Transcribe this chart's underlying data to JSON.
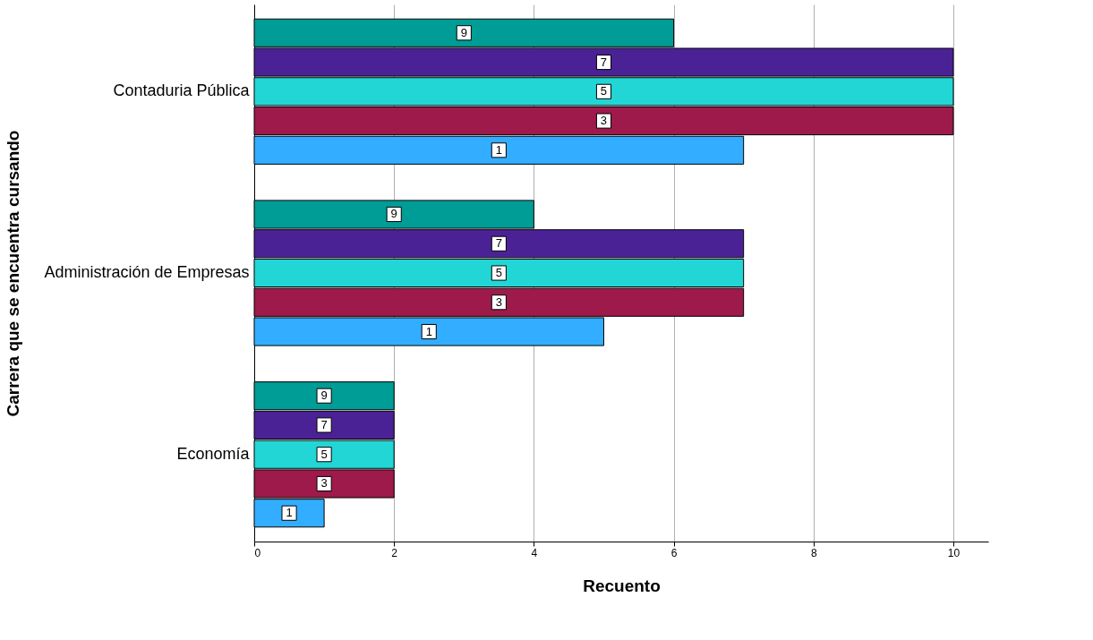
{
  "chart_data": {
    "type": "bar",
    "orientation": "horizontal",
    "xlabel": "Recuento",
    "ylabel": "Carrera que se encuentra cursando",
    "categories": [
      "Contaduria Pública",
      "Administración de Empresas",
      "Economía"
    ],
    "series": [
      {
        "name": "9",
        "color": "#009c96",
        "values": [
          6,
          4,
          2
        ]
      },
      {
        "name": "7",
        "color": "#4b2296",
        "values": [
          10,
          7,
          2
        ]
      },
      {
        "name": "5",
        "color": "#22d6d6",
        "values": [
          10,
          7,
          2
        ]
      },
      {
        "name": "3",
        "color": "#9e1a4b",
        "values": [
          10,
          7,
          2
        ]
      },
      {
        "name": "1",
        "color": "#33adff",
        "values": [
          7,
          5,
          1
        ]
      }
    ],
    "xlim": [
      0,
      10.5
    ],
    "xticks": [
      0,
      2,
      4,
      6,
      8,
      10
    ],
    "grid": "x",
    "legend": false
  }
}
